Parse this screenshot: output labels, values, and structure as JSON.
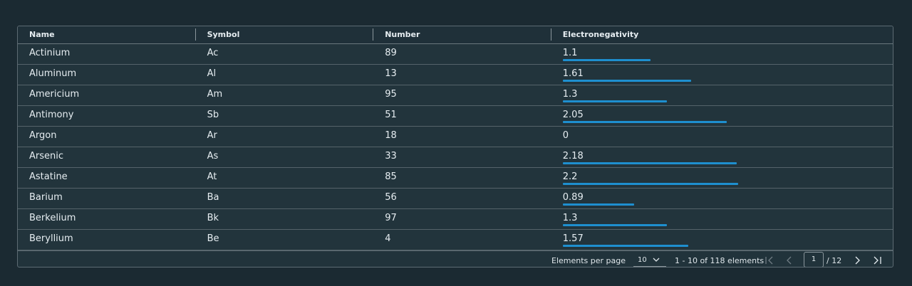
{
  "headers": [
    "Name",
    "Symbol",
    "Number",
    "Electronegativity"
  ],
  "rows": [
    {
      "name": "Actinium",
      "symbol": "Ac",
      "number": "89",
      "en": "1.1",
      "en_value": 1.1
    },
    {
      "name": "Aluminum",
      "symbol": "Al",
      "number": "13",
      "en": "1.61",
      "en_value": 1.61
    },
    {
      "name": "Americium",
      "symbol": "Am",
      "number": "95",
      "en": "1.3",
      "en_value": 1.3
    },
    {
      "name": "Antimony",
      "symbol": "Sb",
      "number": "51",
      "en": "2.05",
      "en_value": 2.05
    },
    {
      "name": "Argon",
      "symbol": "Ar",
      "number": "18",
      "en": "0",
      "en_value": 0
    },
    {
      "name": "Arsenic",
      "symbol": "As",
      "number": "33",
      "en": "2.18",
      "en_value": 2.18
    },
    {
      "name": "Astatine",
      "symbol": "At",
      "number": "85",
      "en": "2.2",
      "en_value": 2.2
    },
    {
      "name": "Barium",
      "symbol": "Ba",
      "number": "56",
      "en": "0.89",
      "en_value": 0.89
    },
    {
      "name": "Berkelium",
      "symbol": "Bk",
      "number": "97",
      "en": "1.3",
      "en_value": 1.3
    },
    {
      "name": "Beryllium",
      "symbol": "Be",
      "number": "4",
      "en": "1.57",
      "en_value": 1.57
    }
  ],
  "bar_color": "#1e8fcf",
  "footer": {
    "per_page_label": "Elements per page",
    "per_page_value": "10",
    "range_text": "1 - 10 of 118 elements",
    "current_page": "1",
    "total_pages_text": "/ 12"
  }
}
